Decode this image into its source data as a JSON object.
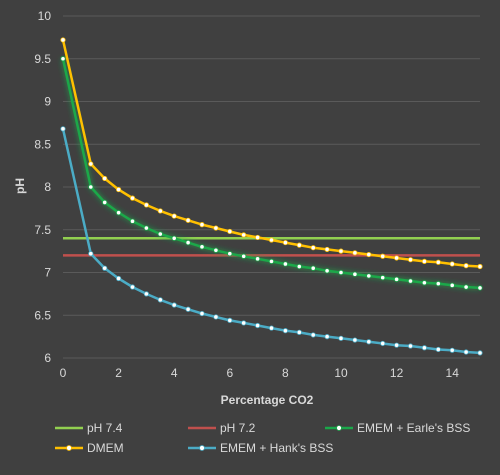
{
  "chart_data": {
    "type": "line",
    "title": "",
    "xlabel": "Percentage CO2",
    "ylabel": "pH",
    "xlim": [
      0,
      15
    ],
    "ylim": [
      6,
      10
    ],
    "x_ticks": [
      0,
      2,
      4,
      6,
      8,
      10,
      12,
      14
    ],
    "y_ticks": [
      "6",
      "6.5",
      "7",
      "7.5",
      "8",
      "8.5",
      "9",
      "9.5",
      "10"
    ],
    "grid": "horizontal",
    "legend_position": "bottom",
    "series": [
      {
        "name": "pH 7.4",
        "color": "#92d050",
        "marker": "none",
        "x": [
          0,
          15
        ],
        "y": [
          7.4,
          7.4
        ]
      },
      {
        "name": "pH 7.2",
        "color": "#c0504d",
        "marker": "none",
        "x": [
          0,
          15
        ],
        "y": [
          7.2,
          7.2
        ]
      },
      {
        "name": "EMEM + Earle's BSS",
        "color": "#1aa84a",
        "marker": "circle",
        "glow": true,
        "x": [
          0,
          1,
          1.5,
          2,
          2.5,
          3,
          3.5,
          4,
          4.5,
          5,
          5.5,
          6,
          6.5,
          7,
          7.5,
          8,
          8.5,
          9,
          9.5,
          10,
          10.5,
          11,
          11.5,
          12,
          12.5,
          13,
          13.5,
          14,
          14.5,
          15
        ],
        "y": [
          9.5,
          8.0,
          7.82,
          7.7,
          7.6,
          7.52,
          7.45,
          7.4,
          7.35,
          7.3,
          7.26,
          7.22,
          7.19,
          7.16,
          7.13,
          7.1,
          7.07,
          7.05,
          7.02,
          7.0,
          6.98,
          6.96,
          6.94,
          6.92,
          6.9,
          6.88,
          6.87,
          6.85,
          6.83,
          6.82
        ]
      },
      {
        "name": "DMEM",
        "color": "#ffc000",
        "marker": "circle",
        "x": [
          0,
          1,
          1.5,
          2,
          2.5,
          3,
          3.5,
          4,
          4.5,
          5,
          5.5,
          6,
          6.5,
          7,
          7.5,
          8,
          8.5,
          9,
          9.5,
          10,
          10.5,
          11,
          11.5,
          12,
          12.5,
          13,
          13.5,
          14,
          14.5,
          15
        ],
        "y": [
          9.72,
          8.27,
          8.1,
          7.97,
          7.87,
          7.79,
          7.72,
          7.66,
          7.61,
          7.56,
          7.52,
          7.48,
          7.44,
          7.41,
          7.38,
          7.35,
          7.32,
          7.29,
          7.27,
          7.25,
          7.23,
          7.21,
          7.19,
          7.17,
          7.15,
          7.13,
          7.12,
          7.1,
          7.08,
          7.07
        ]
      },
      {
        "name": "EMEM + Hank's BSS",
        "color": "#4bacc6",
        "marker": "circle",
        "x": [
          0,
          1,
          1.5,
          2,
          2.5,
          3,
          3.5,
          4,
          4.5,
          5,
          5.5,
          6,
          6.5,
          7,
          7.5,
          8,
          8.5,
          9,
          9.5,
          10,
          10.5,
          11,
          11.5,
          12,
          12.5,
          13,
          13.5,
          14,
          14.5,
          15
        ],
        "y": [
          8.68,
          7.22,
          7.05,
          6.93,
          6.83,
          6.75,
          6.68,
          6.62,
          6.57,
          6.52,
          6.48,
          6.44,
          6.41,
          6.38,
          6.35,
          6.32,
          6.3,
          6.27,
          6.25,
          6.23,
          6.21,
          6.19,
          6.17,
          6.15,
          6.14,
          6.12,
          6.1,
          6.09,
          6.07,
          6.06
        ]
      }
    ],
    "legend_order": [
      0,
      1,
      2,
      3,
      4
    ]
  }
}
